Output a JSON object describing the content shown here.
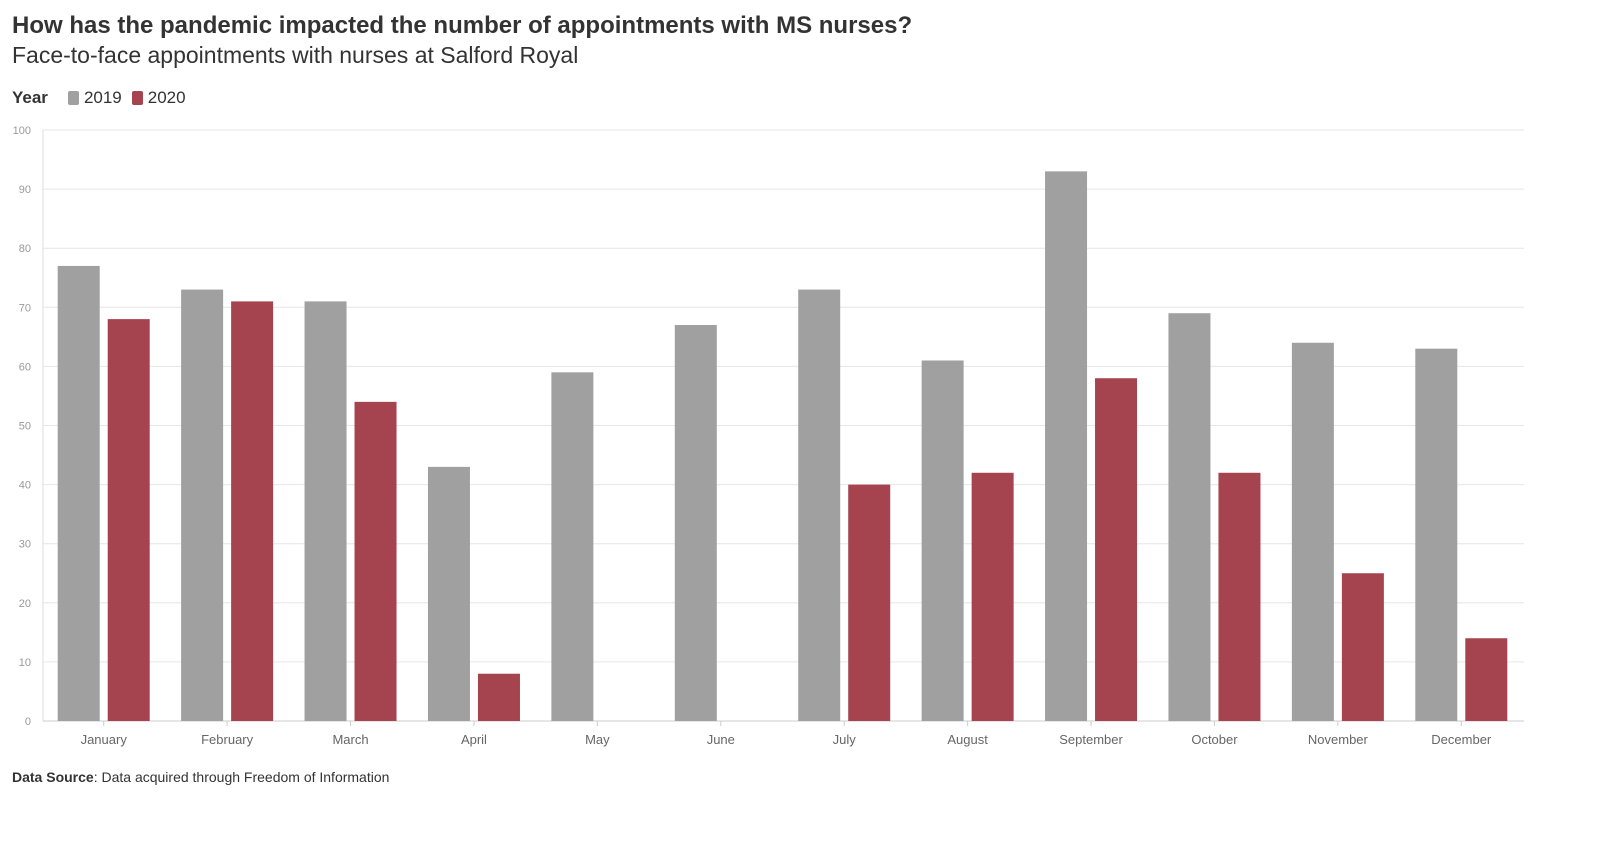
{
  "header": {
    "title": "How has the pandemic impacted the number of appointments with MS nurses?",
    "subtitle": "Face-to-face appointments with nurses at Salford Royal"
  },
  "legend": {
    "title": "Year",
    "items": [
      {
        "label": "2019",
        "color": "#a0a0a0"
      },
      {
        "label": "2020",
        "color": "#a5434f"
      }
    ]
  },
  "footer": {
    "source_label": "Data Source",
    "source_text": ": Data acquired through Freedom of Information"
  },
  "chart_data": {
    "type": "bar",
    "title": "How has the pandemic impacted the number of appointments with MS nurses?",
    "subtitle": "Face-to-face appointments with nurses at Salford Royal",
    "xlabel": "",
    "ylabel": "",
    "ylim": [
      0,
      100
    ],
    "yticks": [
      0,
      10,
      20,
      30,
      40,
      50,
      60,
      70,
      80,
      90,
      100
    ],
    "grid": true,
    "legend_position": "top-left",
    "categories": [
      "January",
      "February",
      "March",
      "April",
      "May",
      "June",
      "July",
      "August",
      "September",
      "October",
      "November",
      "December"
    ],
    "series": [
      {
        "name": "2019",
        "color": "#a0a0a0",
        "values": [
          77,
          73,
          71,
          43,
          59,
          67,
          73,
          61,
          93,
          69,
          64,
          63
        ]
      },
      {
        "name": "2020",
        "color": "#a5434f",
        "values": [
          68,
          71,
          54,
          8,
          null,
          null,
          40,
          42,
          58,
          42,
          25,
          14
        ]
      }
    ]
  }
}
